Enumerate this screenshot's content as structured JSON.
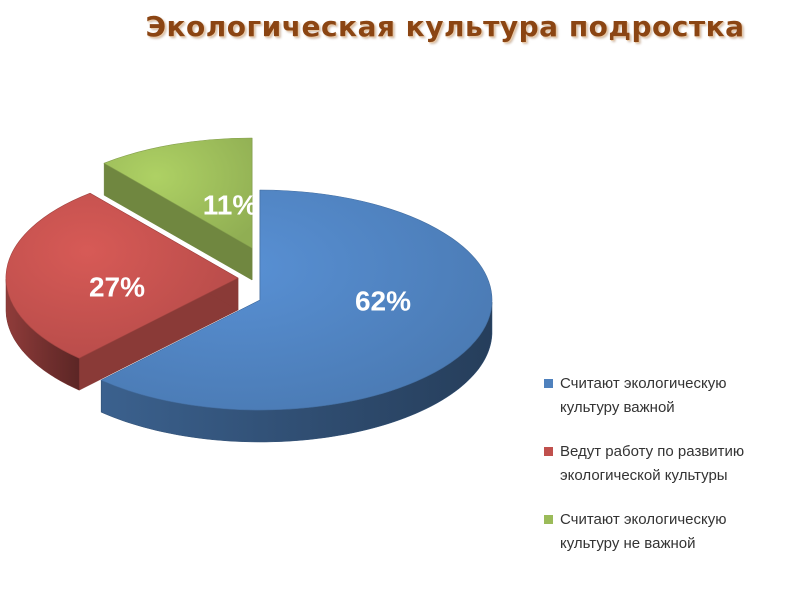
{
  "title": "Экологическая культура подростка",
  "chart_data": {
    "type": "pie",
    "title": "Экологическая культура подростка",
    "slices": [
      {
        "label": "Считают экологическую\nкультуру важной",
        "value": 62,
        "data_label": "62%",
        "color": "#4f81bd"
      },
      {
        "label": "Ведут работу по развитию\nэкологической культуры",
        "value": 27,
        "data_label": "27%",
        "color": "#c0504d"
      },
      {
        "label": "Считают экологическую\nкультуру не важной",
        "value": 11,
        "data_label": "11%",
        "color": "#9bbb59"
      }
    ],
    "exploded": true,
    "three_d": true,
    "legend_position": "right"
  }
}
